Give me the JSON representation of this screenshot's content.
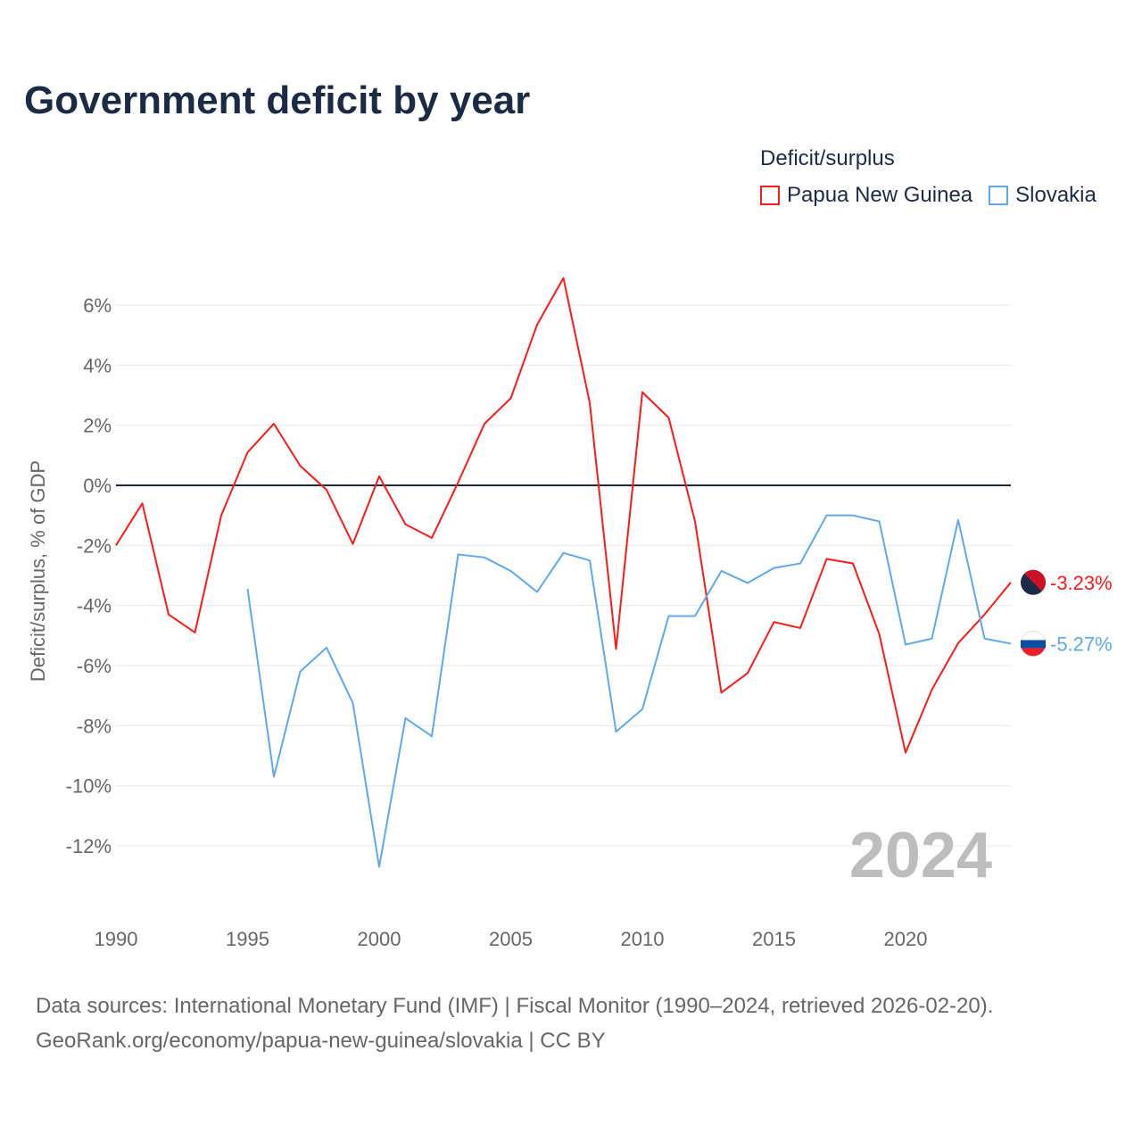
{
  "title": "Government deficit by year",
  "legend": {
    "title": "Deficit/surplus",
    "items": [
      "Papua New Guinea",
      "Slovakia"
    ]
  },
  "source": {
    "line1": "Data sources: International Monetary Fund (IMF) | Fiscal Monitor (1990–2024, retrieved 2026-02-20).",
    "line2": "GeoRank.org/economy/papua-new-guinea/slovakia | CC BY"
  },
  "chart_data": {
    "type": "line",
    "title": "Government deficit by year",
    "xlabel": "",
    "ylabel": "Deficit/surplus, % of GDP",
    "year_watermark": "2024",
    "xlim": [
      1990,
      2024
    ],
    "ylim": [
      -14,
      7
    ],
    "xticks": [
      1990,
      1995,
      2000,
      2005,
      2010,
      2015,
      2020
    ],
    "yticks": [
      6,
      4,
      2,
      0,
      -2,
      -4,
      -6,
      -8,
      -10,
      -12
    ],
    "ytick_labels": [
      "6%",
      "4%",
      "2%",
      "0%",
      "-2%",
      "-4%",
      "-6%",
      "-8%",
      "-10%",
      "-12%"
    ],
    "series": [
      {
        "name": "Papua New Guinea",
        "color": "#ff1a1a",
        "end_label": "-3.23%",
        "start_year": 1990,
        "values": [
          -2.0,
          -0.6,
          -4.3,
          -4.9,
          -1.0,
          1.1,
          2.05,
          0.65,
          -0.15,
          -1.95,
          0.3,
          -1.3,
          -1.75,
          0.1,
          2.05,
          2.9,
          5.35,
          6.9,
          2.75,
          -5.45,
          3.1,
          2.25,
          -1.2,
          -6.9,
          -6.25,
          -4.55,
          -4.75,
          -2.45,
          -2.6,
          -4.95,
          -8.9,
          -6.8,
          -5.25,
          -4.3,
          -3.23
        ]
      },
      {
        "name": "Slovakia",
        "color": "#5fa8ec",
        "end_label": "-5.27%",
        "start_year": 1995,
        "values": [
          -3.45,
          -9.7,
          -6.2,
          -5.4,
          -7.25,
          -12.7,
          -7.75,
          -8.35,
          -2.3,
          -2.4,
          -2.85,
          -3.55,
          -2.25,
          -2.5,
          -8.2,
          -7.45,
          -4.35,
          -4.35,
          -2.85,
          -3.25,
          -2.75,
          -2.6,
          -1.0,
          -1.0,
          -1.2,
          -5.3,
          -5.1,
          -1.15,
          -5.1,
          -5.27
        ]
      }
    ]
  }
}
